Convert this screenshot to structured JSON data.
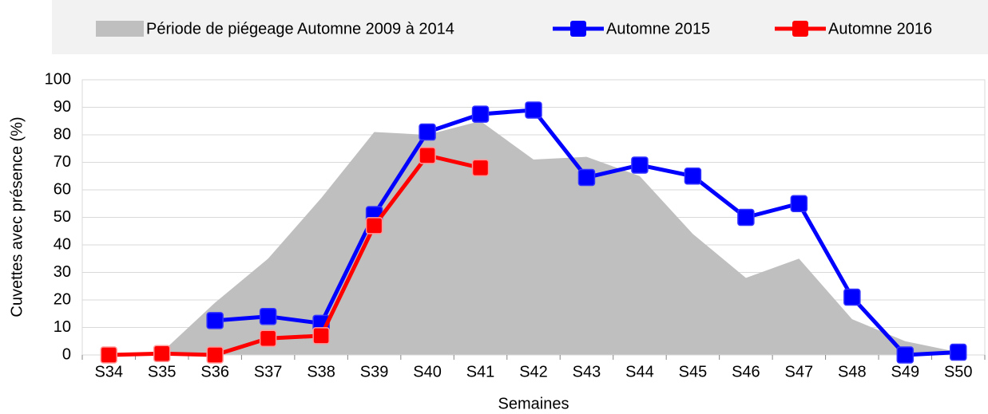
{
  "chart_data": {
    "type": "line",
    "x_label": "Semaines",
    "y_label": "Cuvettes avec présence (%)",
    "categories": [
      "S34",
      "S35",
      "S36",
      "S37",
      "S38",
      "S39",
      "S40",
      "S41",
      "S42",
      "S43",
      "S44",
      "S45",
      "S46",
      "S47",
      "S48",
      "S49",
      "S50"
    ],
    "series": [
      {
        "name": "Période de piégeage Automne 2009 à 2014",
        "kind": "area",
        "color": "#bfbfbf",
        "values": [
          0,
          1,
          19,
          35,
          57,
          81,
          80,
          85,
          71,
          72,
          65,
          44,
          28,
          35,
          13,
          5,
          1
        ]
      },
      {
        "name": "Automne 2015",
        "kind": "line",
        "color": "#0000ff",
        "values": [
          null,
          null,
          12.5,
          14,
          11.5,
          51,
          81,
          87.5,
          89,
          64.5,
          69,
          65,
          50,
          55,
          21,
          0,
          1
        ]
      },
      {
        "name": "Automne 2016",
        "kind": "line",
        "color": "#ff0000",
        "values": [
          0,
          0.5,
          0,
          6,
          7,
          47,
          72.5,
          68,
          null,
          null,
          null,
          null,
          null,
          null,
          null,
          null,
          null
        ]
      }
    ],
    "ylim": [
      0,
      100
    ],
    "yticks": [
      0,
      10,
      20,
      30,
      40,
      50,
      60,
      70,
      80,
      90,
      100
    ],
    "grid": true,
    "legend": "top"
  }
}
